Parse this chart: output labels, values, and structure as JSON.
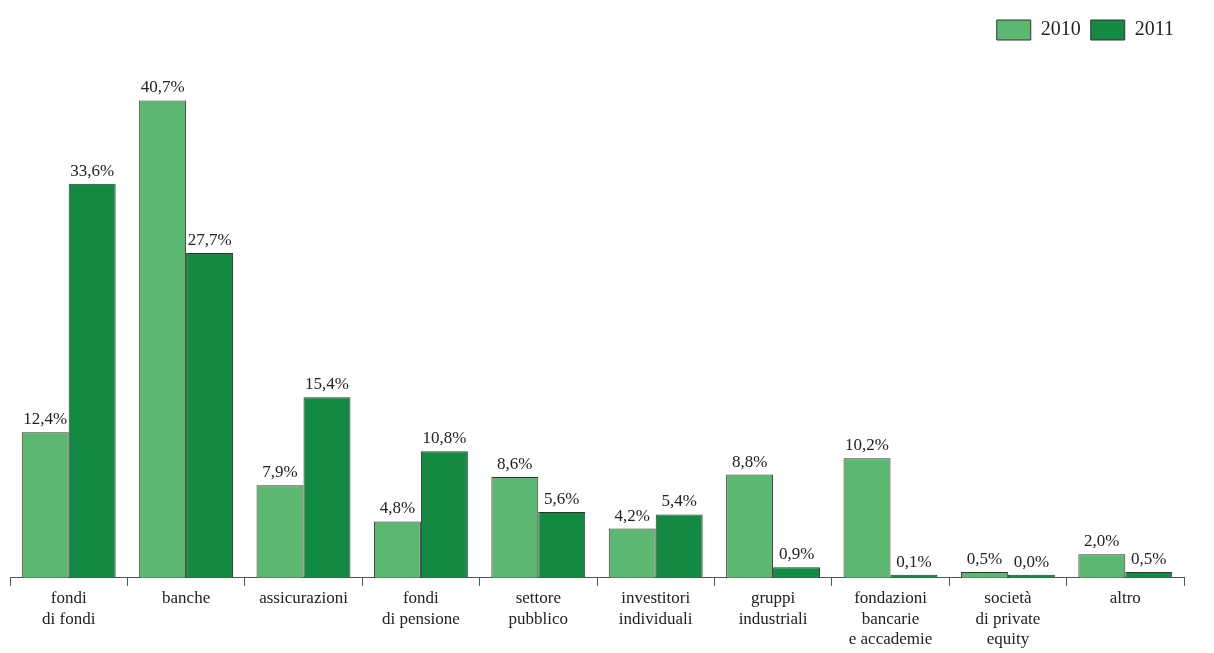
{
  "chart_data": {
    "type": "bar",
    "categories": [
      "fondi\ndi fondi",
      "banche",
      "assicurazioni",
      "fondi\ndi pensione",
      "settore\npubblico",
      "investitori\nindividuali",
      "gruppi\nindustriali",
      "fondazioni\nbancarie\ne accademie",
      "società\ndi private\nequity",
      "altro"
    ],
    "series": [
      {
        "name": "2010",
        "color": "#5cb870",
        "values": [
          12.4,
          40.7,
          7.9,
          4.8,
          8.6,
          4.2,
          8.8,
          10.2,
          0.5,
          2.0
        ],
        "value_labels": [
          "12,4%",
          "40,7%",
          "7,9%",
          "4,8%",
          "8,6%",
          "4,2%",
          "8,8%",
          "10,2%",
          "0,5%",
          "2,0%"
        ]
      },
      {
        "name": "2011",
        "color": "#128a42",
        "values": [
          33.6,
          27.7,
          15.4,
          10.8,
          5.6,
          5.4,
          0.9,
          0.1,
          0.0,
          0.5
        ],
        "value_labels": [
          "33,6%",
          "27,7%",
          "15,4%",
          "10,8%",
          "5,6%",
          "5,4%",
          "0,9%",
          "0,1%",
          "0,0%",
          "0,5%"
        ]
      }
    ],
    "legend": "top right"
  }
}
